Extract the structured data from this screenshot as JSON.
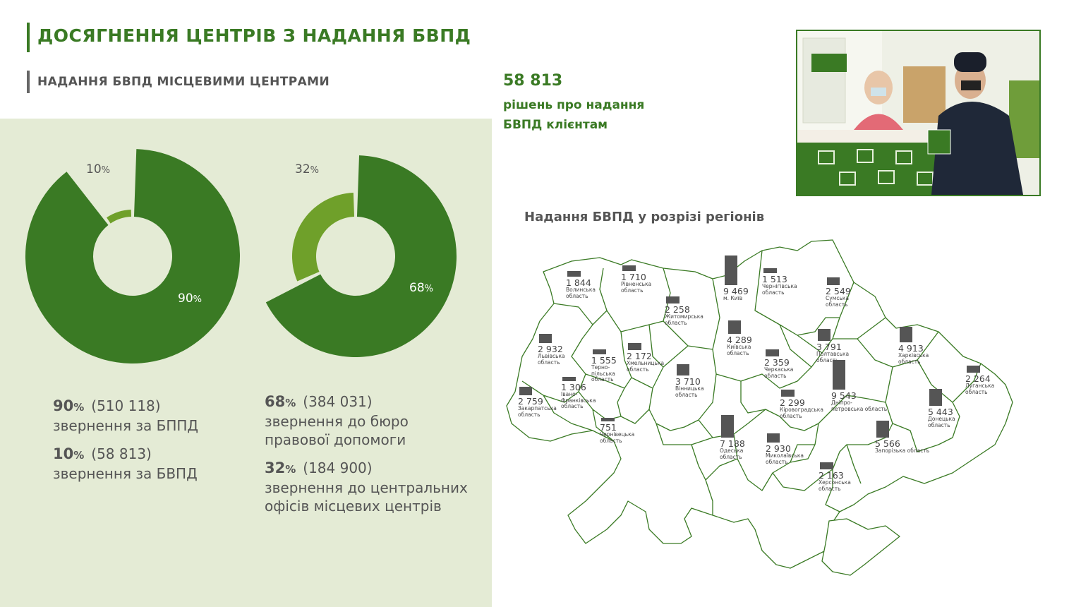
{
  "header": {
    "title": "ДОСЯГНЕННЯ ЦЕНТРІВ З НАДАННЯ БВПД",
    "subtitle": "НАДАННЯ БВПД МІСЦЕВИМИ ЦЕНТРАМИ"
  },
  "highlight": {
    "value": "58 813",
    "line1": "рішень про надання",
    "line2": "БВПД клієнтам"
  },
  "colors": {
    "dark_green": "#3a7a24",
    "light_green": "#6fa02a",
    "panel": "#e4ebd5",
    "bar": "#555555"
  },
  "chart_data": [
    {
      "type": "pie",
      "variant": "donut",
      "labels": [
        "звернення за БППД",
        "звернення за БВПД"
      ],
      "values": [
        510118,
        58813
      ],
      "percents": [
        90,
        10
      ],
      "pct_text": [
        "90",
        "10"
      ],
      "pct_unit": "%",
      "colors": [
        "#3a7a24",
        "#6fa02a"
      ]
    },
    {
      "type": "pie",
      "variant": "donut",
      "labels": [
        "звернення до бюро правової допомоги",
        "звернення до центральних офісів місцевих центрів"
      ],
      "values": [
        384031,
        184900
      ],
      "percents": [
        68,
        32
      ],
      "pct_text": [
        "68",
        "32"
      ],
      "pct_unit": "%",
      "colors": [
        "#3a7a24",
        "#6fa02a"
      ]
    },
    {
      "type": "bar",
      "title": "Надання БВПД у розрізі регіонів",
      "categories": [
        "Волинська область",
        "Рівненська область",
        "Житомирська область",
        "м. Київ",
        "Чернігівська область",
        "Сумська область",
        "Львівська область",
        "Тернопільська область",
        "Хмельницька область",
        "Київська область",
        "Полтавська область",
        "Харківська область",
        "Закарпатська область",
        "Івано-Франківська область",
        "Чернівецька область",
        "Вінницька область",
        "Черкаська область",
        "Кіровоградська область",
        "Дніпропетровська область",
        "Луганська область",
        "Донецька область",
        "Одеська область",
        "Миколаївська область",
        "Запорізька область",
        "Херсонська область"
      ],
      "values": [
        1844,
        1710,
        2258,
        9469,
        1513,
        2549,
        2932,
        1555,
        2172,
        4289,
        3791,
        4913,
        2759,
        1306,
        751,
        3710,
        2359,
        2299,
        9543,
        2264,
        5443,
        7188,
        2930,
        5566,
        2163
      ]
    }
  ],
  "legend1": {
    "r1_pct": "90",
    "r1_cnt": "(510 118)",
    "r1_text": "звернення за БППД",
    "r2_pct": "10",
    "r2_cnt": "(58 813)",
    "r2_text": "звернення за БВПД",
    "unit": "%"
  },
  "legend2": {
    "r1_pct": "68",
    "r1_cnt": "(384 031)",
    "r1_text_a": "звернення до бюро",
    "r1_text_b": "правової допомоги",
    "r2_pct": "32",
    "r2_cnt": "(184 900)",
    "r2_text_a": "звернення до центральних",
    "r2_text_b": "офісів місцевих центрів",
    "unit": "%"
  },
  "regions": [
    {
      "num": "1 844",
      "name": [
        "Волинська",
        "область"
      ]
    },
    {
      "num": "1 710",
      "name": [
        "Рівненська",
        "область"
      ]
    },
    {
      "num": "2 258",
      "name": [
        "Житомирська",
        "область"
      ]
    },
    {
      "num": "9 469",
      "name": [
        "м. Київ"
      ]
    },
    {
      "num": "1 513",
      "name": [
        "Чернігівська",
        "область"
      ]
    },
    {
      "num": "2 549",
      "name": [
        "Сумська",
        "область"
      ]
    },
    {
      "num": "2 932",
      "name": [
        "Львівська",
        "область"
      ]
    },
    {
      "num": "1 555",
      "name": [
        "Терно-",
        "пільська",
        "область"
      ]
    },
    {
      "num": "2 172",
      "name": [
        "Хмельницька",
        "область"
      ]
    },
    {
      "num": "4 289",
      "name": [
        "Київська",
        "область"
      ]
    },
    {
      "num": "3 791",
      "name": [
        "Полтавська",
        "область"
      ]
    },
    {
      "num": "4 913",
      "name": [
        "Харківська",
        "область"
      ]
    },
    {
      "num": "2 759",
      "name": [
        "Закарпатська",
        "область"
      ]
    },
    {
      "num": "1 306",
      "name": [
        "Івано-",
        "Франківська",
        "область"
      ]
    },
    {
      "num": "751",
      "name": [
        "Чернівецька",
        "область"
      ]
    },
    {
      "num": "3 710",
      "name": [
        "Вінницька",
        "область"
      ]
    },
    {
      "num": "2 359",
      "name": [
        "Черкаська",
        "область"
      ]
    },
    {
      "num": "2 299",
      "name": [
        "Кіровоградська",
        "область"
      ]
    },
    {
      "num": "9 543",
      "name": [
        "Дніпро-",
        "петровська область"
      ]
    },
    {
      "num": "2 264",
      "name": [
        "Луганська",
        "область"
      ]
    },
    {
      "num": "5 443",
      "name": [
        "Донецька",
        "область"
      ]
    },
    {
      "num": "7 188",
      "name": [
        "Одеська",
        "область"
      ]
    },
    {
      "num": "2 930",
      "name": [
        "Миколаївська",
        "область"
      ]
    },
    {
      "num": "5 566",
      "name": [
        "Запорізька область"
      ]
    },
    {
      "num": "2 163",
      "name": [
        "Херсонська",
        "область"
      ]
    }
  ]
}
